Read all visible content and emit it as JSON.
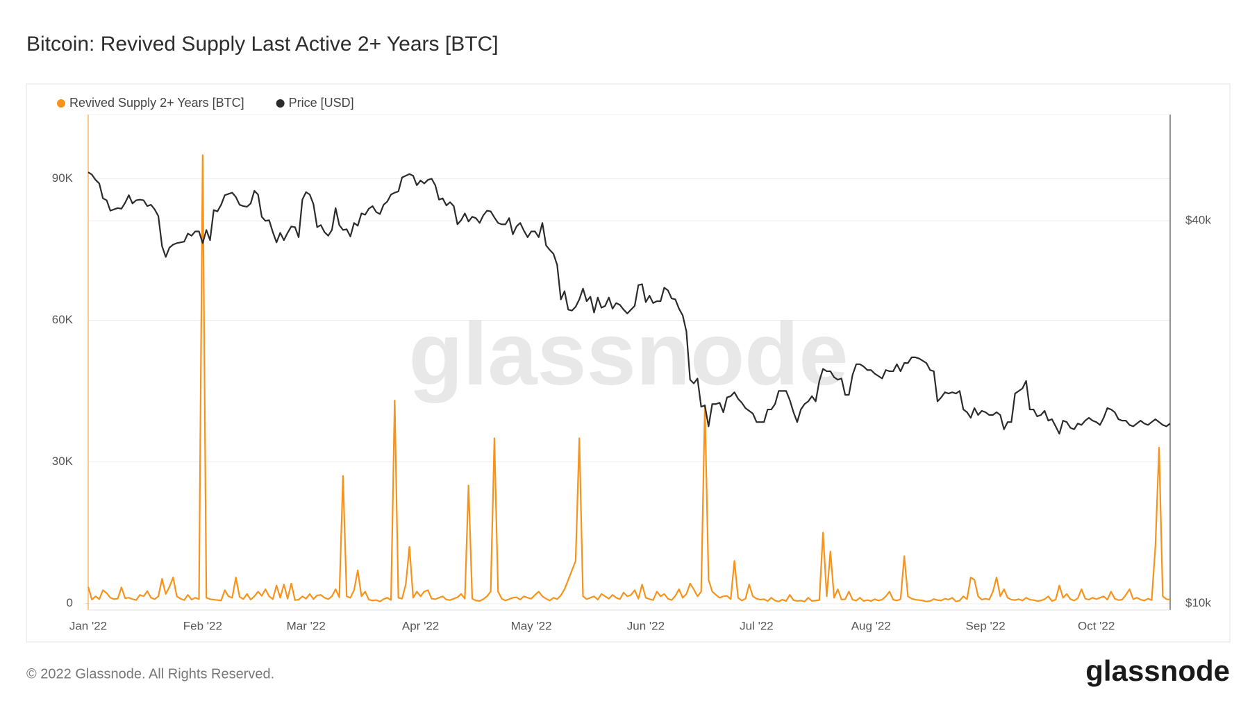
{
  "chart_data": {
    "type": "line",
    "title": "Bitcoin: Revived Supply Last Active 2+ Years [BTC]",
    "watermark": "glassnode",
    "footer": "© 2022 Glassnode. All Rights Reserved.",
    "logo": "glassnode",
    "categories": [
      "Jan '22",
      null,
      null,
      null,
      null,
      null,
      null,
      null,
      null,
      null,
      null,
      null,
      null,
      null,
      null,
      null,
      null,
      null,
      null,
      null,
      null,
      null,
      null,
      null,
      null,
      null,
      null,
      null,
      null,
      null,
      null,
      "Feb '22",
      null,
      null,
      null,
      null,
      null,
      null,
      null,
      null,
      null,
      null,
      null,
      null,
      null,
      null,
      null,
      null,
      null,
      null,
      null,
      null,
      null,
      null,
      null,
      null,
      null,
      null,
      null,
      "Mar '22",
      null,
      null,
      null,
      null,
      null,
      null,
      null,
      null,
      null,
      null,
      null,
      null,
      null,
      null,
      null,
      null,
      null,
      null,
      null,
      null,
      null,
      null,
      null,
      null,
      null,
      null,
      null,
      null,
      null,
      null,
      "Apr '22",
      null,
      null,
      null,
      null,
      null,
      null,
      null,
      null,
      null,
      null,
      null,
      null,
      null,
      null,
      null,
      null,
      null,
      null,
      null,
      null,
      null,
      null,
      null,
      null,
      null,
      null,
      null,
      null,
      null,
      "May '22",
      null,
      null,
      null,
      null,
      null,
      null,
      null,
      null,
      null,
      null,
      null,
      null,
      null,
      null,
      null,
      null,
      null,
      null,
      null,
      null,
      null,
      null,
      null,
      null,
      null,
      null,
      null,
      null,
      null,
      null,
      "Jun '22",
      null,
      null,
      null,
      null,
      null,
      null,
      null,
      null,
      null,
      null,
      null,
      null,
      null,
      null,
      null,
      null,
      null,
      null,
      null,
      null,
      null,
      null,
      null,
      null,
      null,
      null,
      null,
      null,
      null,
      "Jul '22",
      null,
      null,
      null,
      null,
      null,
      null,
      null,
      null,
      null,
      null,
      null,
      null,
      null,
      null,
      null,
      null,
      null,
      null,
      null,
      null,
      null,
      null,
      null,
      null,
      null,
      null,
      null,
      null,
      null,
      null,
      "Aug '22",
      null,
      null,
      null,
      null,
      null,
      null,
      null,
      null,
      null,
      null,
      null,
      null,
      null,
      null,
      null,
      null,
      null,
      null,
      null,
      null,
      null,
      null,
      null,
      null,
      null,
      null,
      null,
      null,
      null,
      null,
      "Sep '22",
      null,
      null,
      null,
      null,
      null,
      null,
      null,
      null,
      null,
      null,
      null,
      null,
      null,
      null,
      null,
      null,
      null,
      null,
      null,
      null,
      null,
      null,
      null,
      null,
      null,
      null,
      null,
      null,
      null,
      "Oct '22",
      null,
      null,
      null,
      null,
      null,
      null,
      null,
      null,
      null,
      null,
      null,
      null,
      null,
      null,
      null,
      null,
      null,
      null,
      null,
      null
    ],
    "series": [
      {
        "name": "Revived Supply 2+ Years [BTC]",
        "color": "#f7931a",
        "axis": "y",
        "values": [
          3500,
          800,
          1500,
          900,
          2800,
          2200,
          1200,
          900,
          1000,
          3400,
          1100,
          1200,
          900,
          700,
          1800,
          1500,
          2600,
          1200,
          900,
          1500,
          5200,
          2000,
          3500,
          5500,
          1500,
          1000,
          700,
          1800,
          800,
          1200,
          900,
          95000,
          1200,
          900,
          800,
          700,
          600,
          2800,
          1500,
          1200,
          5500,
          1400,
          900,
          2000,
          800,
          1500,
          2500,
          1600,
          3000,
          1500,
          900,
          3800,
          1200,
          4000,
          1000,
          4200,
          700,
          800,
          1500,
          1000,
          2000,
          900,
          1700,
          1800,
          1200,
          900,
          1500,
          3000,
          1300,
          27000,
          1500,
          1200,
          2800,
          7000,
          1500,
          2500,
          800,
          600,
          700,
          400,
          900,
          1200,
          700,
          43000,
          1200,
          1000,
          4000,
          12000,
          1200,
          2500,
          1500,
          2500,
          2800,
          1000,
          900,
          1200,
          1500,
          800,
          700,
          1000,
          1300,
          2000,
          1000,
          25000,
          1000,
          600,
          500,
          900,
          1500,
          2500,
          35000,
          2500,
          1000,
          600,
          900,
          1200,
          1300,
          800,
          1500,
          1200,
          1000,
          1800,
          2500,
          1500,
          1000,
          600,
          1200,
          900,
          1700,
          3000,
          5000,
          7000,
          9000,
          35000,
          1500,
          900,
          1200,
          1500,
          800,
          2000,
          1500,
          1000,
          1800,
          1200,
          900,
          2300,
          1500,
          1800,
          2800,
          1000,
          4000,
          1200,
          900,
          700,
          2500,
          1500,
          2000,
          1000,
          700,
          1600,
          3000,
          1200,
          2000,
          4200,
          3000,
          1500,
          2500,
          42000,
          5000,
          2500,
          1800,
          1200,
          1500,
          1600,
          900,
          9000,
          1200,
          600,
          1000,
          4000,
          1500,
          1000,
          800,
          900,
          500,
          1200,
          600,
          400,
          800,
          500,
          1800,
          700,
          500,
          600,
          400,
          1200,
          500,
          600,
          700,
          15000,
          1500,
          11000,
          1200,
          3000,
          800,
          900,
          2500,
          800,
          600,
          1200,
          500,
          700,
          500,
          900,
          600,
          800,
          1500,
          2500,
          800,
          600,
          900,
          10000,
          1500,
          1000,
          800,
          700,
          600,
          400,
          500,
          900,
          700,
          600,
          1000,
          800,
          1200,
          400,
          600,
          1500,
          900,
          5500,
          5000,
          1500,
          800,
          1000,
          800,
          2500,
          5500,
          1500,
          3000,
          1200,
          800,
          700,
          900,
          600,
          1200,
          800,
          700,
          500,
          600,
          900,
          1500,
          500,
          800,
          3800,
          1200,
          2000,
          900,
          600,
          1100,
          3000,
          1000,
          800,
          1200,
          900,
          1200,
          1500,
          800,
          2500,
          1000,
          700,
          800,
          1800,
          3000,
          900,
          1200,
          800,
          600,
          1000,
          700,
          12000,
          33000,
          1500,
          900,
          800
        ]
      },
      {
        "name": "Price [USD]",
        "color": "#2b2b2b",
        "axis": "y2",
        "values": [
          47700,
          47300,
          46400,
          45800,
          43400,
          43100,
          41500,
          41700,
          41900,
          41800,
          42700,
          43900,
          42600,
          43100,
          43200,
          43100,
          42200,
          42400,
          41700,
          40700,
          36500,
          35100,
          36300,
          36700,
          36900,
          37000,
          37100,
          38200,
          37900,
          38500,
          38500,
          36900,
          38700,
          37300,
          41600,
          41400,
          42400,
          43900,
          44100,
          44300,
          43600,
          42400,
          42200,
          42100,
          42600,
          44600,
          44000,
          40600,
          40000,
          40100,
          38400,
          37000,
          38300,
          37300,
          38300,
          39200,
          39100,
          37700,
          43200,
          44400,
          44000,
          42500,
          39100,
          39400,
          38400,
          37900,
          38700,
          41900,
          39400,
          38700,
          38800,
          37800,
          39700,
          39300,
          41100,
          40900,
          41800,
          42200,
          41300,
          41000,
          42400,
          42900,
          44000,
          44300,
          44500,
          46800,
          47100,
          47400,
          47100,
          45500,
          46300,
          45800,
          46400,
          46600,
          45500,
          43200,
          43400,
          42300,
          42800,
          42200,
          39500,
          40100,
          41100,
          39900,
          40600,
          40400,
          39700,
          40800,
          41500,
          41400,
          40500,
          39700,
          39500,
          39500,
          40400,
          38100,
          39200,
          39700,
          38600,
          37700,
          38500,
          38500,
          37700,
          39700,
          36600,
          36000,
          35500,
          34100,
          30100,
          31000,
          29000,
          28900,
          29300,
          30100,
          31300,
          29900,
          30400,
          28700,
          30300,
          29200,
          29400,
          30300,
          29100,
          29700,
          29500,
          29000,
          28600,
          29000,
          29400,
          31700,
          31800,
          29800,
          30500,
          29700,
          29900,
          29900,
          31400,
          31100,
          30200,
          30100,
          29100,
          28400,
          26800,
          22500,
          22200,
          22600,
          20400,
          20500,
          19000,
          20600,
          20600,
          20700,
          20000,
          21100,
          21200,
          21500,
          21000,
          20700,
          20300,
          20100,
          19900,
          19300,
          19300,
          19300,
          20200,
          20200,
          20600,
          21600,
          21600,
          21600,
          20900,
          20000,
          19300,
          20200,
          20600,
          20800,
          21200,
          20800,
          22400,
          23400,
          23200,
          23200,
          22700,
          22500,
          22600,
          21300,
          21300,
          22900,
          23800,
          23800,
          23600,
          23300,
          23300,
          23000,
          22800,
          22600,
          23300,
          23200,
          23200,
          23800,
          23200,
          23900,
          23900,
          24400,
          24400,
          24300,
          24100,
          23900,
          23300,
          23200,
          20800,
          21100,
          21500,
          21400,
          21500,
          21400,
          21600,
          20200,
          20000,
          19600,
          20300,
          19800,
          20100,
          20000,
          19800,
          19800,
          20000,
          19800,
          18800,
          19300,
          19300,
          21400,
          21600,
          21800,
          22400,
          20200,
          20200,
          19700,
          19800,
          20100,
          19400,
          19500,
          19000,
          18500,
          19400,
          19300,
          18900,
          18800,
          19200,
          19100,
          19400,
          19600,
          19400,
          19300,
          19100,
          19600,
          20300,
          20200,
          20000,
          19500,
          19400,
          19400,
          19100,
          19000,
          19200,
          19400,
          19200,
          19100,
          19300,
          19500,
          19300,
          19100,
          19000,
          19200
        ]
      }
    ],
    "ylim": [
      -1400,
      103600
    ],
    "yticks": [
      0,
      {
        "value": 30000,
        "label": "30K"
      },
      {
        "value": 60000,
        "label": "60K"
      },
      {
        "value": 90000,
        "label": "90K"
      }
    ],
    "y2lim": [
      9770,
      58800
    ],
    "y2ticks": [
      {
        "value": 10000,
        "label": "$10k"
      },
      {
        "value": 40000,
        "label": "$40k"
      }
    ],
    "y2scale": "log",
    "grid": true,
    "legend": "top-left"
  }
}
